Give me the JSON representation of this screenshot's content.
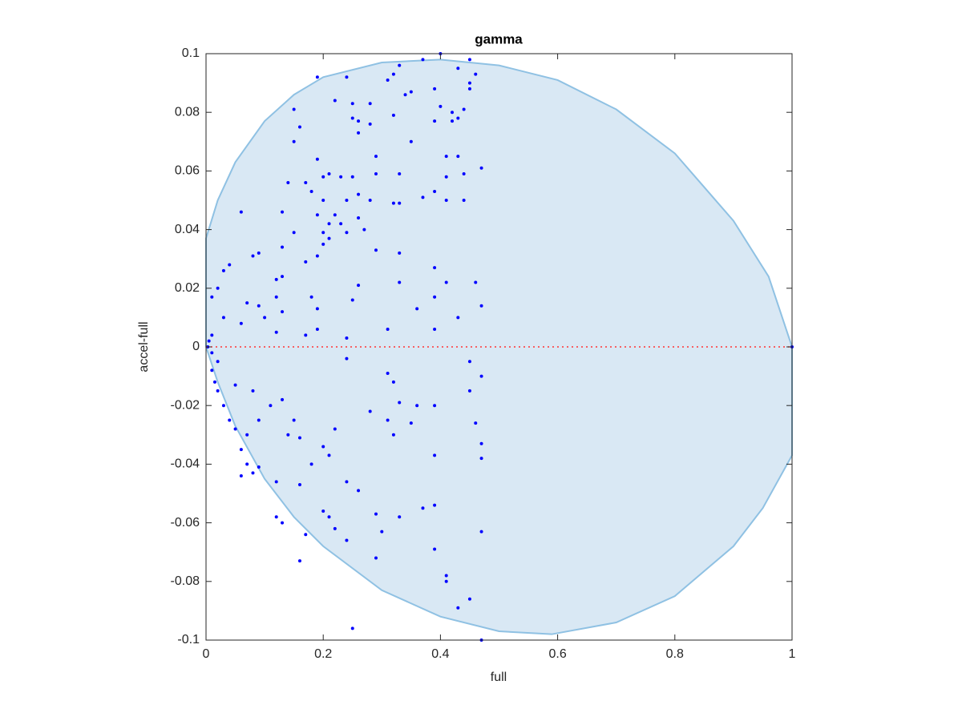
{
  "chart_data": {
    "type": "scatter",
    "title": "gamma",
    "xlabel": "full",
    "ylabel": "accel-full",
    "xlim": [
      0,
      1
    ],
    "ylim": [
      -0.1,
      0.1
    ],
    "xticks": [
      0,
      0.2,
      0.4,
      0.6,
      0.8,
      1
    ],
    "yticks": [
      -0.1,
      -0.08,
      -0.06,
      -0.04,
      -0.02,
      0,
      0.02,
      0.04,
      0.06,
      0.08,
      0.1
    ],
    "series": [
      {
        "type": "area",
        "color": "#8fc1e3",
        "fill": "#d9e8f4",
        "x": [
          0,
          0.02,
          0.05,
          0.1,
          0.15,
          0.2,
          0.3,
          0.4,
          0.5,
          0.6,
          0.7,
          0.8,
          0.9,
          0.96,
          1,
          1,
          0.95,
          0.9,
          0.8,
          0.7,
          0.59,
          0.5,
          0.4,
          0.3,
          0.2,
          0.15,
          0.1,
          0.05,
          0.02,
          0,
          0
        ],
        "values": [
          0.037,
          0.05,
          0.063,
          0.077,
          0.086,
          0.092,
          0.097,
          0.098,
          0.096,
          0.091,
          0.081,
          0.066,
          0.043,
          0.024,
          0,
          -0.037,
          -0.055,
          -0.068,
          -0.085,
          -0.094,
          -0.098,
          -0.097,
          -0.092,
          -0.083,
          -0.068,
          -0.058,
          -0.045,
          -0.027,
          -0.012,
          0,
          0.037
        ]
      },
      {
        "type": "scatter",
        "color": "#0000ff",
        "x": [
          0.4,
          0.45,
          0.19,
          0.24,
          0.31,
          0.33,
          0.37,
          0.43,
          0.46,
          0.39,
          0.32,
          0.34,
          0.35,
          0.45,
          0.45,
          0.15,
          0.22,
          0.25,
          0.25,
          0.28,
          0.26,
          0.32,
          0.4,
          0.42,
          0.43,
          0.44,
          0.42,
          0.39,
          0.16,
          0.15,
          0.26,
          0.28,
          0.35,
          0.19,
          0.29,
          0.2,
          0.21,
          0.23,
          0.25,
          0.29,
          0.33,
          0.41,
          0.43,
          0.41,
          0.44,
          0.47,
          0.14,
          0.17,
          0.18,
          0.2,
          0.24,
          0.26,
          0.28,
          0.32,
          0.33,
          0.37,
          0.39,
          0.41,
          0.44,
          0.06,
          0.13,
          0.19,
          0.22,
          0.23,
          0.26,
          0.21,
          0.2,
          0.21,
          0.24,
          0.27,
          0.15,
          0.2,
          0.13,
          0.09,
          0.08,
          0.33,
          0.29,
          0.19,
          0.17,
          0.04,
          0.03,
          0.13,
          0.12,
          0.02,
          0.01,
          0.26,
          0.33,
          0.39,
          0.41,
          0.46,
          0.47,
          0.18,
          0.19,
          0.12,
          0.13,
          0.07,
          0.09,
          0.1,
          0.36,
          0.39,
          0.25,
          0.43,
          0.31,
          0.39,
          0.19,
          0.17,
          0.24,
          0.12,
          0.06,
          0.03,
          0.01,
          0.005,
          0.003,
          0.01,
          0.02,
          0.01,
          0.015,
          0.02,
          0.03,
          0.04,
          0.05,
          0.06,
          0.07,
          0.06,
          0.08,
          0.09,
          0.12,
          0.16,
          0.07,
          0.09,
          0.11,
          0.13,
          0.14,
          0.15,
          0.16,
          0.18,
          0.2,
          0.21,
          0.22,
          0.28,
          0.31,
          0.32,
          0.33,
          0.35,
          0.36,
          0.39,
          0.39,
          0.45,
          0.45,
          0.47,
          0.47,
          0.47,
          0.46,
          0.05,
          0.08,
          0.2,
          0.21,
          0.24,
          0.26,
          0.29,
          0.3,
          0.33,
          0.37,
          0.39,
          0.12,
          0.13,
          0.17,
          0.16,
          0.22,
          0.24,
          0.29,
          0.39,
          0.41,
          0.41,
          0.45,
          0.43,
          0.47,
          0.25,
          0.47,
          0.31,
          0.32,
          0.24,
          1
        ],
        "values": [
          0.1,
          0.098,
          0.092,
          0.092,
          0.091,
          0.096,
          0.098,
          0.095,
          0.093,
          0.088,
          0.093,
          0.086,
          0.087,
          0.09,
          0.088,
          0.081,
          0.084,
          0.078,
          0.083,
          0.083,
          0.077,
          0.079,
          0.082,
          0.08,
          0.078,
          0.081,
          0.077,
          0.077,
          0.075,
          0.07,
          0.073,
          0.076,
          0.07,
          0.064,
          0.065,
          0.058,
          0.059,
          0.058,
          0.058,
          0.059,
          0.059,
          0.058,
          0.065,
          0.065,
          0.059,
          0.061,
          0.056,
          0.056,
          0.053,
          0.05,
          0.05,
          0.052,
          0.05,
          0.049,
          0.049,
          0.051,
          0.053,
          0.05,
          0.05,
          0.046,
          0.046,
          0.045,
          0.045,
          0.042,
          0.044,
          0.042,
          0.039,
          0.037,
          0.039,
          0.04,
          0.039,
          0.035,
          0.034,
          0.032,
          0.031,
          0.032,
          0.033,
          0.031,
          0.029,
          0.028,
          0.026,
          0.024,
          0.023,
          0.02,
          0.017,
          0.021,
          0.022,
          0.027,
          0.022,
          0.022,
          0.014,
          0.017,
          0.013,
          0.017,
          0.012,
          0.015,
          0.014,
          0.01,
          0.013,
          0.017,
          0.016,
          0.01,
          0.006,
          0.006,
          0.006,
          0.004,
          0.003,
          0.005,
          0.008,
          0.01,
          0.004,
          0.002,
          0,
          -0.002,
          -0.005,
          -0.008,
          -0.012,
          -0.015,
          -0.02,
          -0.025,
          -0.028,
          -0.035,
          -0.04,
          -0.044,
          -0.043,
          -0.041,
          -0.046,
          -0.047,
          -0.03,
          -0.025,
          -0.02,
          -0.018,
          -0.03,
          -0.025,
          -0.031,
          -0.04,
          -0.034,
          -0.037,
          -0.028,
          -0.022,
          -0.025,
          -0.03,
          -0.019,
          -0.026,
          -0.02,
          -0.02,
          -0.037,
          -0.015,
          -0.005,
          -0.01,
          -0.033,
          -0.038,
          -0.026,
          -0.013,
          -0.015,
          -0.056,
          -0.058,
          -0.046,
          -0.049,
          -0.057,
          -0.063,
          -0.058,
          -0.055,
          -0.054,
          -0.058,
          -0.06,
          -0.064,
          -0.073,
          -0.062,
          -0.066,
          -0.072,
          -0.069,
          -0.078,
          -0.08,
          -0.086,
          -0.089,
          -0.063,
          -0.096,
          -0.1,
          -0.009,
          -0.012,
          -0.004,
          0
        ]
      },
      {
        "type": "line",
        "color": "#ff3333",
        "style": "dotted",
        "x": [
          0,
          1
        ],
        "values": [
          0,
          0
        ]
      }
    ]
  }
}
